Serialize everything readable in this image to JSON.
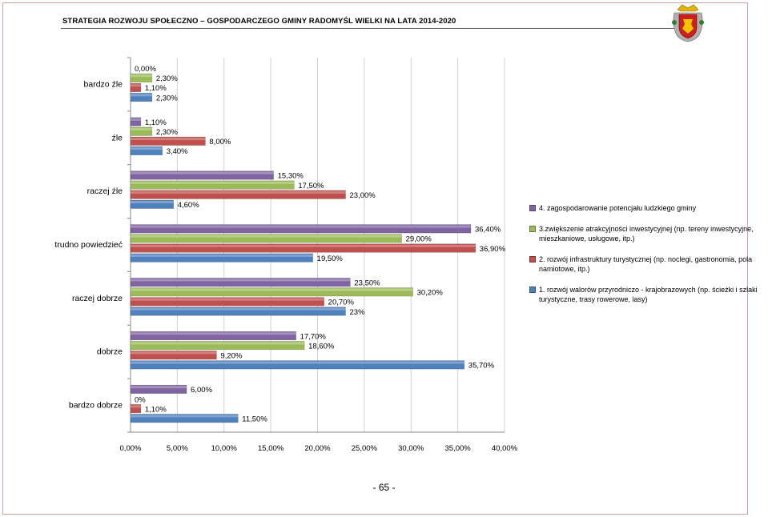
{
  "header": {
    "title": "STRATEGIA ROZWOJU SPOŁECZNO – GOSPODARCZEGO GMINY RADOMYŚL WIELKI NA LATA 2014-2020"
  },
  "footer": {
    "page_number": "- 65 -"
  },
  "colors": {
    "series4": "#8064a2",
    "series3": "#9bbb59",
    "series2": "#c0504d",
    "series1": "#4f81bd",
    "gridline": "#d0d0d0",
    "border": "#d9a0a0"
  },
  "chart_data": {
    "type": "bar",
    "orientation": "horizontal",
    "categories": [
      "bardzo źle",
      "źle",
      "raczej źle",
      "trudno powiedzieć",
      "raczej dobrze",
      "dobrze",
      "bardzo dobrze"
    ],
    "series": [
      {
        "name": "4. zagospodarowanie potencjału ludzkiego gminy",
        "values": [
          0.0,
          1.1,
          15.3,
          36.4,
          23.5,
          17.7,
          6.0
        ],
        "labels": [
          "0,00%",
          "1,10%",
          "15,30%",
          "36,40%",
          "23,50%",
          "17,70%",
          "6,00%"
        ]
      },
      {
        "name": "3.zwiększenie atrakcyjności inwestycyjnej (np. tereny inwestycyjne, mieszkaniowe, usługowe, itp.)",
        "values": [
          2.3,
          2.3,
          17.5,
          29.0,
          30.2,
          18.6,
          0.0
        ],
        "labels": [
          "2,30%",
          "2,30%",
          "17,50%",
          "29,00%",
          "30,20%",
          "18,60%",
          "0%"
        ]
      },
      {
        "name": "2. rozwój infrastruktury turystycznej (np. noclegi, gastronomia, pola namiotowe, itp.)",
        "values": [
          1.1,
          8.0,
          23.0,
          36.9,
          20.7,
          9.2,
          1.1
        ],
        "labels": [
          "1,10%",
          "8,00%",
          "23,00%",
          "36,90%",
          "20,70%",
          "9,20%",
          "1,10%"
        ]
      },
      {
        "name": "1. rozwój walorów przyrodniczo - krajobrazowych (np. ścieżki i szlaki turystyczne, trasy rowerowe, lasy)",
        "values": [
          2.3,
          3.4,
          4.6,
          19.5,
          23.0,
          35.7,
          11.5
        ],
        "labels": [
          "2,30%",
          "3,40%",
          "4,60%",
          "19,50%",
          "23%",
          "35,70%",
          "11,50%"
        ]
      }
    ],
    "xlim": [
      0,
      40
    ],
    "xticks": [
      "0,00%",
      "5,00%",
      "10,00%",
      "15,00%",
      "20,00%",
      "25,00%",
      "30,00%",
      "35,00%",
      "40,00%"
    ],
    "grid": true,
    "legend_position": "right",
    "legend_order": [
      0,
      1,
      2,
      3
    ]
  }
}
